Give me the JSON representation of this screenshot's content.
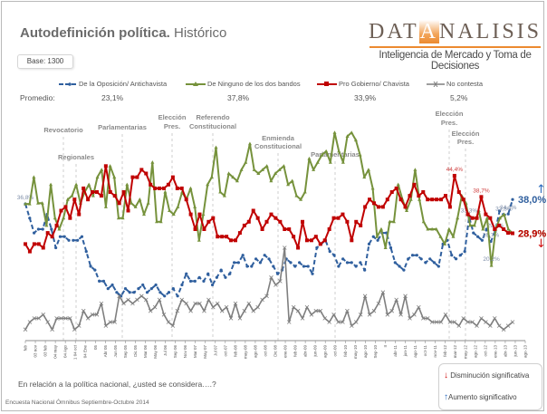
{
  "header": {
    "title_bold": "Autodefinición política.",
    "title_light": " Histórico",
    "base_label": "Base: 1300"
  },
  "logo": {
    "name_pre": "DAT",
    "name_accent": "A",
    "name_post": "NALISIS",
    "tagline": "Inteligencia de Mercado y Toma de Decisiones"
  },
  "promedio_label": "Promedio:",
  "footer": {
    "question": "En relación a la política nacional, ¿usted se considera….?",
    "source": "Encuesta Nacional Ómnibus Septiembre-Octubre 2014"
  },
  "significance_key": {
    "decrease_icon": "arrow-down-icon",
    "decrease_label": "Disminución significativa",
    "increase_icon": "arrow-up-icon",
    "increase_label": "Aumento significativo"
  },
  "chart_data": {
    "type": "line",
    "title": "Autodefinición política. Histórico",
    "xlabel": "",
    "ylabel": "",
    "ylim": [
      0,
      60
    ],
    "grid": false,
    "legend_position": "top",
    "series": [
      {
        "name": "De la Oposición/ Antichavista",
        "average": "23,1%",
        "color": "#2f5f9e",
        "style": "dashed",
        "marker": "circle",
        "values": [
          36.8,
          33,
          29,
          30,
          30,
          34,
          30,
          25,
          28,
          28,
          27,
          27,
          27,
          28,
          24,
          20,
          19,
          16,
          16,
          14,
          15,
          13,
          12,
          14,
          13,
          13,
          14,
          15,
          13,
          14,
          15,
          13,
          12,
          13,
          14,
          12,
          15,
          18,
          16,
          16,
          17,
          16,
          18,
          15,
          17,
          19,
          17,
          18,
          21,
          21,
          23,
          20,
          20,
          22,
          21,
          23,
          22,
          20,
          18,
          19,
          22,
          21,
          20,
          21,
          20,
          20,
          18,
          25,
          26,
          27,
          24,
          23,
          20,
          22,
          21,
          21,
          20,
          21,
          19,
          26,
          28,
          27,
          29,
          29,
          25,
          21,
          20,
          19,
          22,
          23,
          23,
          22,
          21,
          22,
          21,
          20,
          26,
          27,
          23,
          22,
          23,
          24,
          33.3,
          29,
          28,
          27,
          30,
          26.7,
          29.3,
          34.9,
          33.8,
          34.1,
          38.0
        ],
        "labels": [
          {
            "value": "36,8%",
            "index": 0
          },
          {
            "value": "33,3%",
            "index": 102
          },
          {
            "value": "26,7%",
            "index": 107
          },
          {
            "value": "29,3%",
            "index": 108
          },
          {
            "value": "34,1%",
            "index": 111
          },
          {
            "value": "33,8%",
            "index": 110
          },
          {
            "value": "38,0%",
            "index": 112
          }
        ]
      },
      {
        "name": "De Ninguno de los dos bandos",
        "average": "37,8%",
        "color": "#76923c",
        "style": "solid",
        "marker": "triangle",
        "values": [
          36.8,
          36.8,
          44,
          37,
          37,
          31,
          42,
          33,
          30,
          33,
          38,
          39,
          42,
          37,
          40,
          42,
          39,
          44,
          46,
          36,
          47,
          44,
          33,
          33,
          42,
          37,
          36,
          38,
          34,
          37,
          48,
          32,
          32,
          40,
          35,
          34,
          36,
          40,
          38,
          41,
          36,
          27,
          34,
          42,
          44,
          52,
          40,
          39,
          45,
          44,
          43,
          46,
          48,
          53,
          46,
          45,
          46,
          47,
          43,
          45,
          46,
          47,
          42,
          43,
          39,
          38,
          40,
          49,
          46,
          48,
          50,
          51,
          48,
          56,
          51,
          48,
          55,
          56,
          54,
          50,
          44,
          46,
          41,
          28,
          30,
          25,
          32,
          32,
          42,
          38,
          35,
          38,
          46,
          38,
          32,
          30,
          30,
          30,
          28,
          26,
          30,
          28,
          33,
          39,
          37,
          31,
          31,
          35,
          30,
          33,
          20.2,
          30,
          33,
          34,
          30,
          28.9
        ],
        "labels": [
          {
            "value": "20,2%",
            "index": 110
          },
          {
            "value": "28,9%",
            "index": 115
          }
        ]
      },
      {
        "name": "Pro Gobierno/ Chavista",
        "average": "33,9%",
        "color": "#c00000",
        "style": "solid",
        "marker": "square",
        "values": [
          26,
          24,
          26,
          26,
          25,
          29,
          28,
          31,
          35,
          36,
          33,
          38,
          34,
          41,
          38,
          40,
          40,
          39,
          47,
          40,
          39,
          37,
          40,
          35,
          44,
          44,
          46,
          45,
          42,
          41,
          41,
          41,
          42,
          44,
          41,
          41,
          38,
          34,
          30,
          34,
          30,
          32,
          33,
          28,
          28,
          28,
          27,
          27,
          29,
          31,
          32,
          35,
          33,
          30,
          32,
          34,
          33,
          32,
          30,
          30,
          28,
          25,
          32,
          27,
          27,
          28,
          26,
          27,
          30,
          33,
          33,
          34,
          32,
          27,
          32,
          31,
          36,
          38,
          37,
          36,
          36,
          38,
          40,
          41,
          38,
          36,
          39,
          42,
          39,
          40,
          38,
          38,
          38,
          38,
          39,
          36,
          44.4,
          40,
          38,
          34,
          33,
          33,
          38.7,
          34,
          33,
          30,
          31,
          30,
          29,
          28.9
        ],
        "labels": [
          {
            "value": "44,4%",
            "index": 96
          },
          {
            "value": "38,7%",
            "index": 102
          },
          {
            "value": "28,9%",
            "index": 109
          }
        ]
      },
      {
        "name": "No contesta",
        "average": "5,2%",
        "color": "#7f7f7f",
        "style": "solid",
        "marker": "x",
        "values": [
          3,
          5,
          6,
          6,
          7,
          5,
          3,
          6,
          6,
          6,
          6,
          3,
          4,
          8,
          6,
          7,
          7,
          10,
          4,
          5,
          5,
          12,
          10,
          11,
          10,
          11,
          12,
          11,
          8,
          9,
          11,
          7,
          5,
          4,
          8,
          11,
          10,
          8,
          10,
          10,
          8,
          11,
          9,
          10,
          8,
          9,
          6,
          10,
          6,
          8,
          10,
          8,
          9,
          11,
          12,
          17,
          15,
          16,
          25,
          5,
          9,
          8,
          6,
          9,
          7,
          8,
          8,
          6,
          5,
          7,
          5,
          5,
          8,
          4,
          5,
          7,
          12,
          7,
          8,
          10,
          13,
          7,
          8,
          11,
          7,
          12,
          6,
          7,
          9,
          6,
          6,
          5,
          5,
          5,
          7,
          5,
          5,
          4,
          6,
          5,
          5,
          4,
          6,
          5,
          4,
          6,
          4,
          3,
          4,
          5
        ],
        "labels": []
      }
    ],
    "event_annotations": [
      "Revocatorio",
      "Regionales",
      "Parlamentarias",
      "Elección Pres.",
      "Referendo Constitucional",
      "Enmienda Constitucional",
      "Parlamentarias",
      "Elección Pres.",
      "Elección Pres."
    ],
    "x_tick_labels": [
      "feb",
      "03 nov",
      "03 feb",
      "04 may",
      "04 Ago",
      "1 04 oct",
      "04 Ene",
      "05",
      "Abr 05",
      "Jun 05",
      "Sep 05",
      "Dic 05",
      "Mar 06",
      "May 06",
      "Jul 06",
      "Sep 06",
      "Nov 06",
      "Mar 07",
      "May 07",
      "Jul 07",
      "oct-07",
      "feb-08",
      "may-08",
      "ago-08",
      "oct-08",
      "Dic 08",
      "ene-09",
      "feb-09",
      "abr-09",
      "jun-09",
      "ago-09",
      "oct-09",
      "feb-10",
      "may-10",
      "ago-10",
      "Sep-10",
      "II",
      "abr-11",
      "jun-11",
      "ago-11",
      "oct-11",
      "nov-11",
      "feb-12",
      "mar-12",
      "may-12",
      "ago-12",
      "oct-12",
      "ene-13",
      "abr-13",
      "jun-13",
      "ago-13"
    ]
  }
}
